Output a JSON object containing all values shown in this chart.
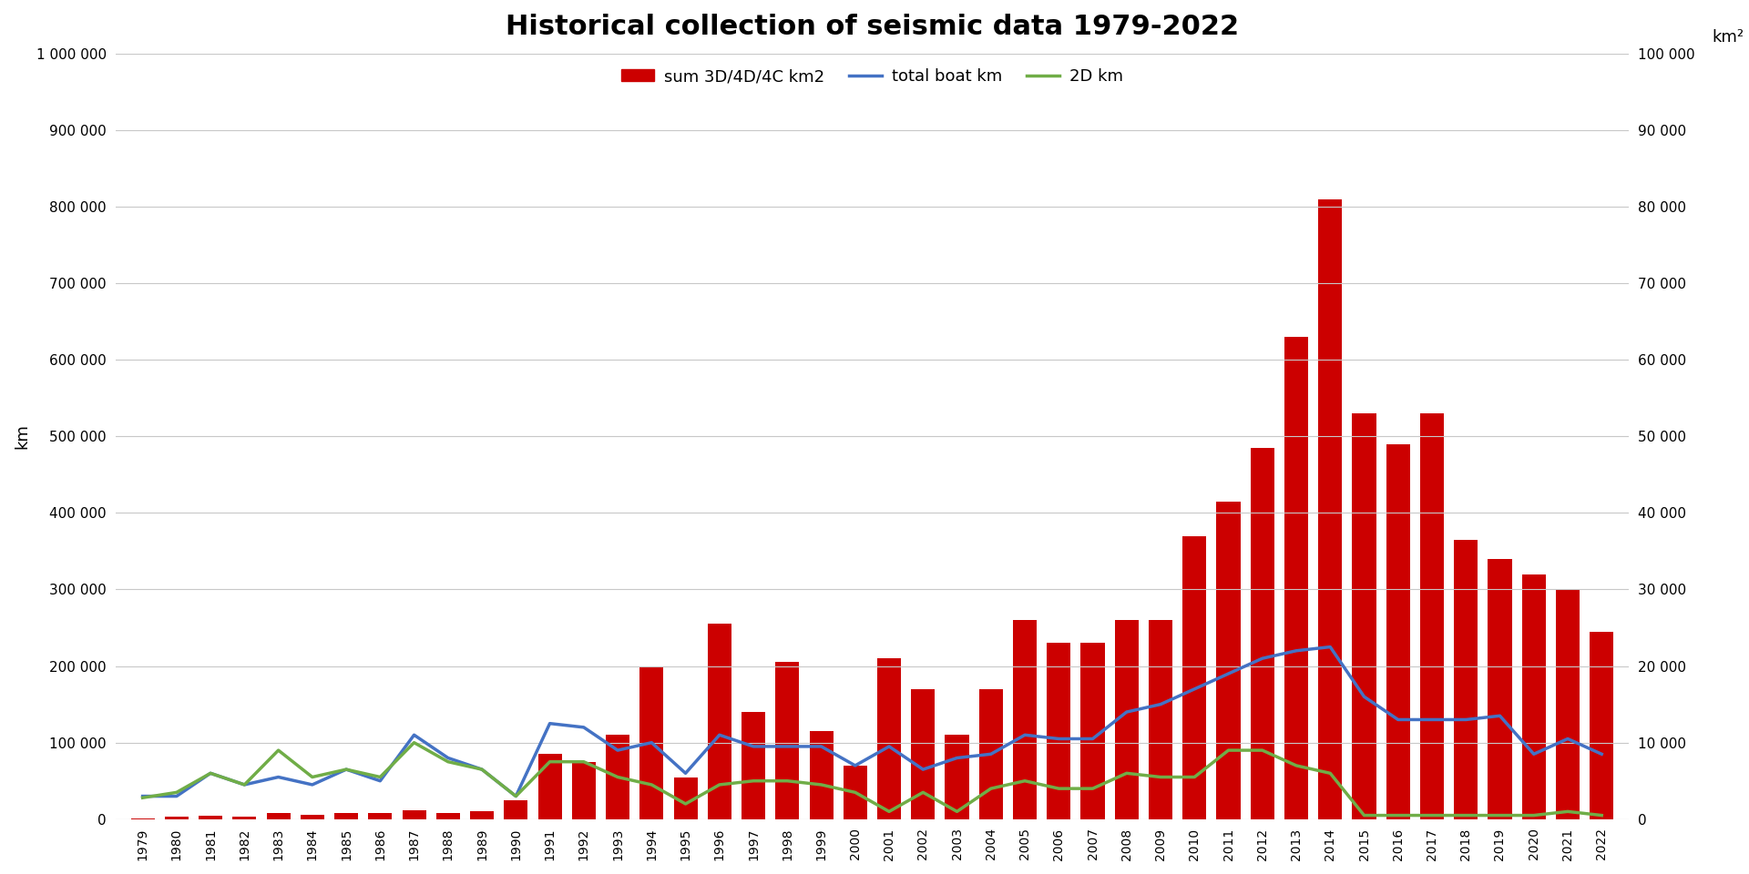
{
  "title": "Historical collection of seismic data 1979-2022",
  "ylabel_left": "km",
  "ylabel_right": "km²",
  "years": [
    1979,
    1980,
    1981,
    1982,
    1983,
    1984,
    1985,
    1986,
    1987,
    1988,
    1989,
    1990,
    1991,
    1992,
    1993,
    1994,
    1995,
    1996,
    1997,
    1998,
    1999,
    2000,
    2001,
    2002,
    2003,
    2004,
    2005,
    2006,
    2007,
    2008,
    2009,
    2010,
    2011,
    2012,
    2013,
    2014,
    2015,
    2016,
    2017,
    2018,
    2019,
    2020,
    2021,
    2022
  ],
  "bar_3D_km2": [
    100,
    300,
    500,
    300,
    800,
    600,
    800,
    800,
    1200,
    800,
    1000,
    2500,
    8500,
    7500,
    11000,
    20000,
    5500,
    25500,
    14000,
    20500,
    11500,
    7000,
    21000,
    17000,
    11000,
    17000,
    26000,
    23000,
    23000,
    26000,
    26000,
    37000,
    41500,
    48500,
    63000,
    81000,
    53000,
    49000,
    53000,
    36500,
    34000,
    32000,
    30000,
    24500
  ],
  "boat_km": [
    30000,
    30000,
    60000,
    45000,
    55000,
    45000,
    65000,
    50000,
    110000,
    80000,
    65000,
    30000,
    125000,
    120000,
    90000,
    100000,
    60000,
    110000,
    95000,
    95000,
    95000,
    70000,
    95000,
    65000,
    80000,
    85000,
    110000,
    105000,
    105000,
    140000,
    150000,
    170000,
    190000,
    210000,
    220000,
    225000,
    160000,
    130000,
    130000,
    130000,
    135000,
    85000,
    105000,
    85000
  ],
  "2D_km": [
    28000,
    35000,
    60000,
    45000,
    90000,
    55000,
    65000,
    55000,
    100000,
    75000,
    65000,
    30000,
    75000,
    75000,
    55000,
    45000,
    20000,
    45000,
    50000,
    50000,
    45000,
    35000,
    10000,
    35000,
    10000,
    40000,
    50000,
    40000,
    40000,
    60000,
    55000,
    55000,
    90000,
    90000,
    70000,
    60000,
    5000,
    5000,
    5000,
    5000,
    5000,
    5000,
    10000,
    5000
  ],
  "ylim_left": [
    0,
    1000000
  ],
  "ylim_right": [
    0,
    100000
  ],
  "yticks_left": [
    0,
    100000,
    200000,
    300000,
    400000,
    500000,
    600000,
    700000,
    800000,
    900000,
    1000000
  ],
  "yticks_right": [
    0,
    10000,
    20000,
    30000,
    40000,
    50000,
    60000,
    70000,
    80000,
    90000,
    100000
  ],
  "bar_color": "#cc0000",
  "line_boat_color": "#4472c4",
  "line_2d_color": "#70ad47",
  "background_color": "#ffffff",
  "grid_color": "#c8c8c8",
  "title_fontsize": 22,
  "legend_labels": [
    "sum 3D/4D/4C km2",
    "total boat km",
    "2D km"
  ]
}
